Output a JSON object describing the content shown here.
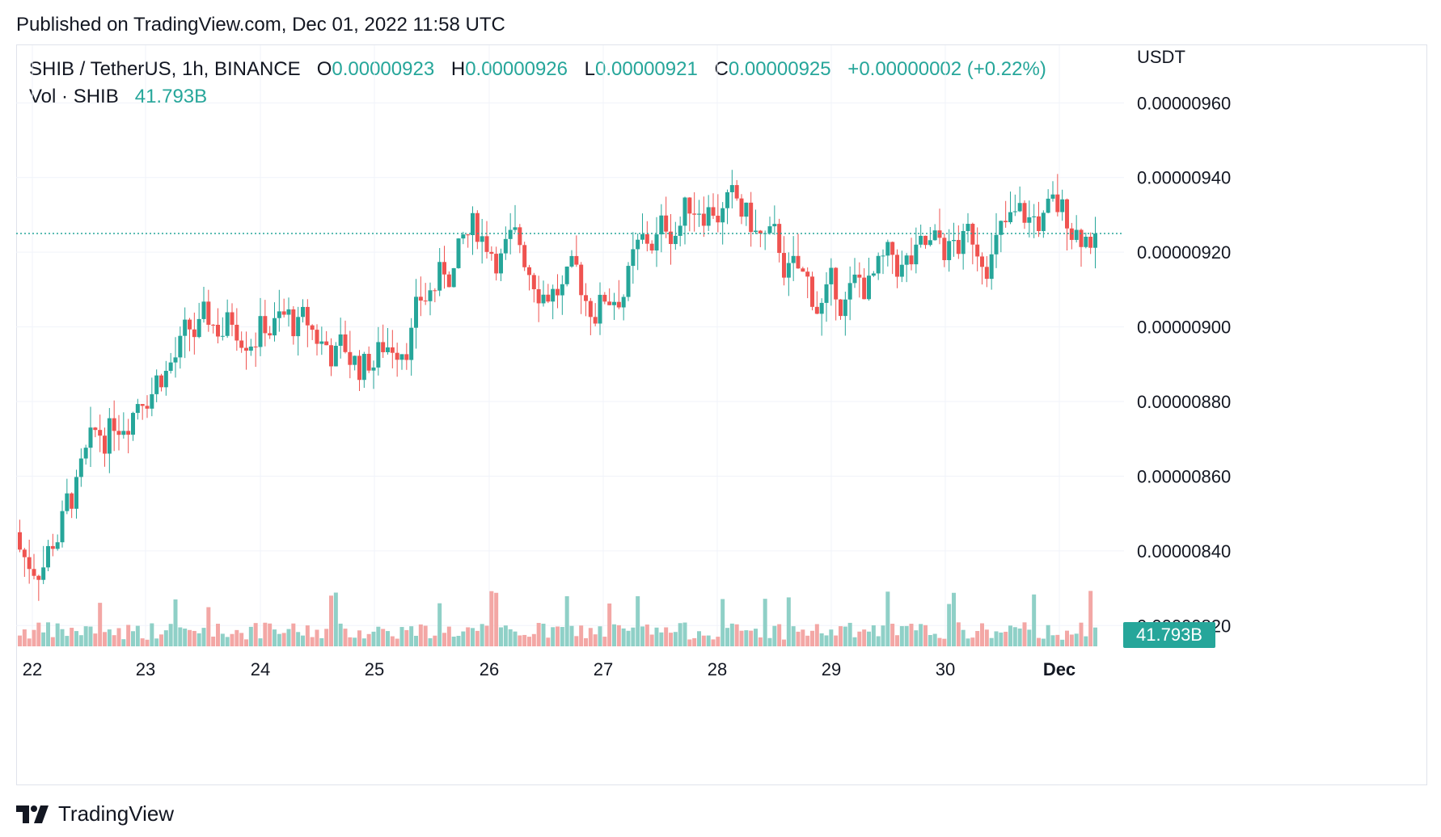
{
  "header": {
    "published": "Published on TradingView.com, Dec 01, 2022 11:58 UTC"
  },
  "legend": {
    "symbol": "SHIB / TetherUS, 1h, BINANCE",
    "open_label": "O",
    "open": "0.00000923",
    "high_label": "H",
    "high": "0.00000926",
    "low_label": "L",
    "low": "0.00000921",
    "close_label": "C",
    "close": "0.00000925",
    "change": "+0.00000002 (+0.22%)",
    "vol_label": "Vol · SHIB",
    "vol_value": "41.793B"
  },
  "footer": {
    "brand": "TradingView",
    "logo_icon": "tradingview-logo-icon"
  },
  "colors": {
    "up": "#26a69a",
    "down": "#ef5350",
    "up_vol": "#8fd0c7",
    "down_vol": "#f3a7a5",
    "grid": "#f0f3fa",
    "text": "#131722"
  },
  "chart_data": {
    "type": "candlestick",
    "symbol": "SHIB / TetherUS",
    "interval": "1h",
    "exchange": "BINANCE",
    "currency_label": "USDT",
    "y_ticks": [
      "0.00000960",
      "0.00000940",
      "0.00000920",
      "0.00000900",
      "0.00000880",
      "0.00000860",
      "0.00000840",
      "0.00000820"
    ],
    "y_tick_values": [
      9.6e-06,
      9.4e-06,
      9.2e-06,
      9e-06,
      8.8e-06,
      8.6e-06,
      8.4e-06,
      8.2e-06
    ],
    "ylim": [
      8.14e-06,
      9.75e-06
    ],
    "x_ticks": [
      "22",
      "23",
      "24",
      "25",
      "26",
      "27",
      "28",
      "29",
      "30",
      "Dec"
    ],
    "last_price": 9.25e-06,
    "last_volume_label": "41.793B",
    "grid": true,
    "candles_per_day": 24,
    "day_closes": [
      8.32e-06,
      8.88e-06,
      9.05e-06,
      8.89e-06,
      9.26e-06,
      9.05e-06,
      9.38e-06,
      9.05e-06,
      9.18e-06,
      9.29e-06,
      9.24e-06
    ],
    "day_notes": "Nov 22 → Dec 1, hourly candles approximated from the chart"
  }
}
